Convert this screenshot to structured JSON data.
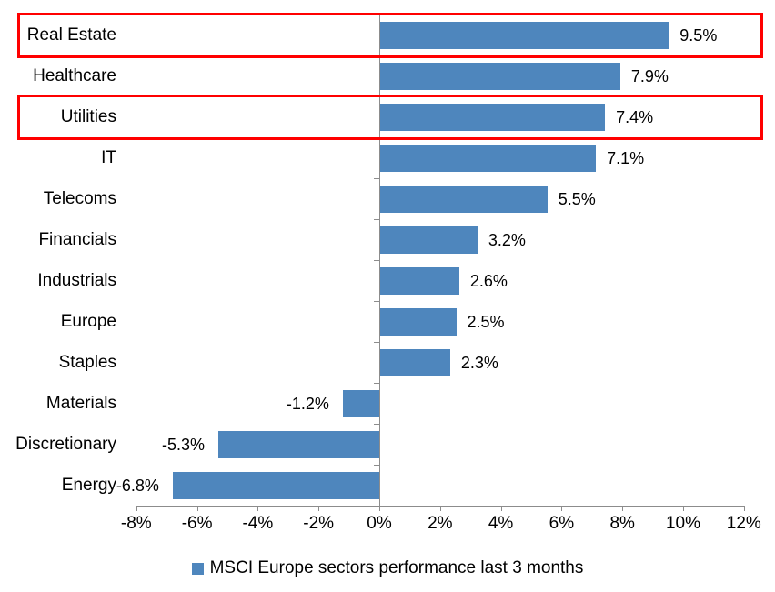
{
  "chart_data": {
    "type": "bar",
    "orientation": "horizontal",
    "title": "",
    "legend": "MSCI Europe sectors performance last 3 months",
    "legend_position": "bottom-center",
    "categories": [
      "Real Estate",
      "Healthcare",
      "Utilities",
      "IT",
      "Telecoms",
      "Financials",
      "Industrials",
      "Europe",
      "Staples",
      "Materials",
      "Discretionary",
      "Energy"
    ],
    "values": [
      9.5,
      7.9,
      7.4,
      7.1,
      5.5,
      3.2,
      2.6,
      2.5,
      2.3,
      -1.2,
      -5.3,
      -6.8
    ],
    "value_labels": [
      "9.5%",
      "7.9%",
      "7.4%",
      "7.1%",
      "5.5%",
      "3.2%",
      "2.6%",
      "2.5%",
      "2.3%",
      "-1.2%",
      "-5.3%",
      "-6.8%"
    ],
    "x_tick_labels": [
      "-8%",
      "-6%",
      "-4%",
      "-2%",
      "0%",
      "2%",
      "4%",
      "6%",
      "8%",
      "10%",
      "12%"
    ],
    "x_tick_values": [
      -8,
      -6,
      -4,
      -2,
      0,
      2,
      4,
      6,
      8,
      10,
      12
    ],
    "xlim": [
      -8,
      12
    ],
    "grid": "off",
    "bar_color": "#4E86BD",
    "axis_color": "#8c8c8c",
    "text_color": "#000000",
    "highlight_box_color": "#FF0000",
    "highlighted_categories": [
      "Real Estate",
      "Utilities"
    ]
  }
}
